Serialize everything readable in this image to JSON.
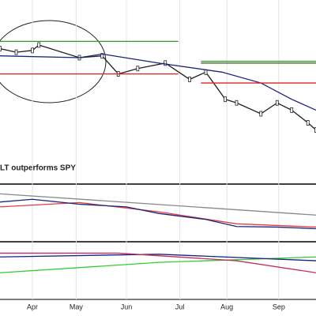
{
  "chart_data": [
    {
      "type": "line",
      "annotation": "LT outperforms SPY",
      "xlim": [
        0,
        195
      ],
      "ylim": [
        0,
        100
      ],
      "series": [
        {
          "color": "#222222",
          "x": [
            0,
            10,
            20,
            24,
            49,
            63,
            73,
            85,
            102,
            117,
            127,
            139,
            146,
            161,
            171,
            180,
            190,
            195
          ],
          "values": [
            74,
            72,
            73,
            76,
            69,
            70,
            60,
            63,
            66,
            57,
            61,
            46,
            44,
            38,
            44,
            40,
            33,
            29
          ]
        },
        {
          "color": "#1a237e",
          "x": [
            0,
            49,
            63,
            98,
            137,
            161,
            180,
            195
          ],
          "values": [
            70,
            69,
            71,
            66,
            61,
            55,
            46,
            40
          ]
        },
        {
          "color": "#2e9d2e",
          "x": [
            0,
            110
          ],
          "values": [
            78,
            78
          ]
        },
        {
          "color": "#e02020",
          "x": [
            0,
            110
          ],
          "values": [
            60,
            60
          ]
        },
        {
          "color": "#2e9d2e",
          "x": [
            124,
            195
          ],
          "values": [
            67,
            67
          ]
        },
        {
          "color": "#3a5a1a",
          "x": [
            124,
            195
          ],
          "values": [
            66,
            66
          ]
        },
        {
          "color": "#e02020",
          "x": [
            124,
            195
          ],
          "values": [
            55,
            55
          ]
        }
      ]
    },
    {
      "type": "line",
      "xlim": [
        0,
        195
      ],
      "ylim": [
        0,
        100
      ],
      "series": [
        {
          "color": "#888888",
          "x": [
            0,
            195
          ],
          "values": [
            85,
            46
          ]
        },
        {
          "color": "#e04040",
          "x": [
            0,
            49,
            98,
            146,
            195
          ],
          "values": [
            61,
            69,
            52,
            30,
            24
          ]
        },
        {
          "color": "#1a237e",
          "x": [
            0,
            20,
            49,
            78,
            98,
            127,
            146,
            171,
            195
          ],
          "values": [
            70,
            75,
            66,
            61,
            49,
            38,
            25,
            24,
            21
          ]
        }
      ]
    },
    {
      "type": "line",
      "xlim": [
        0,
        195
      ],
      "ylim": [
        0,
        100
      ],
      "xticks": [
        {
          "value": 20,
          "label": "Apr"
        },
        {
          "value": 47,
          "label": "May"
        },
        {
          "value": 78,
          "label": "Jun"
        },
        {
          "value": 111,
          "label": "Jul"
        },
        {
          "value": 140,
          "label": "Aug"
        },
        {
          "value": 172,
          "label": "Sep"
        }
      ],
      "series": [
        {
          "color": "#33cc33",
          "x": [
            0,
            98,
            195
          ],
          "values": [
            46,
            65,
            75
          ]
        },
        {
          "color": "#1a237e",
          "x": [
            0,
            98,
            195
          ],
          "values": [
            75,
            80,
            68
          ]
        },
        {
          "color": "#c03060",
          "x": [
            0,
            73,
            146,
            195
          ],
          "values": [
            82,
            82,
            68,
            46
          ]
        }
      ]
    }
  ]
}
